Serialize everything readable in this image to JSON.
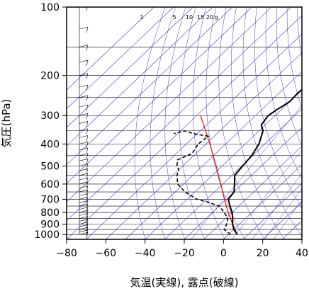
{
  "chart_data": {
    "type": "line",
    "subtype": "skew-T log-P thermodynamic diagram",
    "xlabel": "気温(実線), 露点(破線)",
    "ylabel": "気圧(hPa)",
    "xlim": [
      -80,
      40
    ],
    "ylim_pressure_hPa": [
      1050,
      100
    ],
    "y_scale": "log",
    "x_ticks": [
      "−80",
      "−60",
      "−40",
      "−20",
      "0",
      "20",
      "40"
    ],
    "x_tick_values": [
      -80,
      -60,
      -40,
      -20,
      0,
      20,
      40
    ],
    "y_ticks": [
      "100",
      "200",
      "300",
      "400",
      "500",
      "600",
      "700",
      "800",
      "900",
      "1000"
    ],
    "y_tick_values": [
      100,
      200,
      300,
      400,
      500,
      600,
      700,
      800,
      900,
      1000
    ],
    "mixing_ratio_labels": [
      "1",
      "5",
      "10",
      "15",
      "20",
      "g"
    ],
    "colors": {
      "temperature": "#000000",
      "dewpoint": "#000000",
      "parcel": "#ff0000",
      "isotherm": "#3a3ad0",
      "isobar": "#000000",
      "wind_barb": "#000000"
    },
    "series": [
      {
        "style": "solid",
        "points": [
          {
            "p": 1000,
            "t": 4.5
          },
          {
            "p": 950,
            "t": 0
          },
          {
            "p": 900,
            "t": -3.5
          },
          {
            "p": 850,
            "t": -6.5
          },
          {
            "p": 800,
            "t": -10
          },
          {
            "p": 750,
            "t": -14.5
          },
          {
            "p": 700,
            "t": -19
          },
          {
            "p": 650,
            "t": -20
          },
          {
            "p": 600,
            "t": -24
          },
          {
            "p": 550,
            "t": -28.5
          },
          {
            "p": 500,
            "t": -29.5
          },
          {
            "p": 450,
            "t": -30.5
          },
          {
            "p": 400,
            "t": -33
          },
          {
            "p": 350,
            "t": -38
          },
          {
            "p": 330,
            "t": -42
          },
          {
            "p": 300,
            "t": -43.5
          },
          {
            "p": 280,
            "t": -42
          },
          {
            "p": 260,
            "t": -40
          },
          {
            "p": 240,
            "t": -40.5
          },
          {
            "p": 220,
            "t": -40
          },
          {
            "p": 200,
            "t": -42.5
          },
          {
            "p": 180,
            "t": -45
          },
          {
            "p": 160,
            "t": -46
          },
          {
            "p": 140,
            "t": -48
          },
          {
            "p": 120,
            "t": -51
          },
          {
            "p": 110,
            "t": -53
          },
          {
            "p": 100,
            "t": -54
          }
        ]
      },
      {
        "style": "dashed",
        "points": [
          {
            "p": 1000,
            "t": 1
          },
          {
            "p": 950,
            "t": -5
          },
          {
            "p": 900,
            "t": -6.5
          },
          {
            "p": 850,
            "t": -9
          },
          {
            "p": 800,
            "t": -14
          },
          {
            "p": 750,
            "t": -20
          },
          {
            "p": 720,
            "t": -28
          },
          {
            "p": 700,
            "t": -35
          },
          {
            "p": 650,
            "t": -45
          },
          {
            "p": 600,
            "t": -53
          },
          {
            "p": 550,
            "t": -58
          },
          {
            "p": 520,
            "t": -60
          },
          {
            "p": 500,
            "t": -63
          },
          {
            "p": 470,
            "t": -66
          },
          {
            "p": 440,
            "t": -62
          },
          {
            "p": 400,
            "t": -64
          },
          {
            "p": 370,
            "t": -63
          },
          {
            "p": 360,
            "t": -72
          },
          {
            "p": 350,
            "t": -78
          },
          {
            "p": 360,
            "t": -82
          }
        ]
      },
      {
        "style": "solid-red",
        "points": [
          {
            "p": 1000,
            "t": 4.5
          },
          {
            "p": 900,
            "t": -3.5
          },
          {
            "p": 800,
            "t": -12
          },
          {
            "p": 700,
            "t": -21
          },
          {
            "p": 600,
            "t": -31
          },
          {
            "p": 500,
            "t": -43
          },
          {
            "p": 400,
            "t": -58
          },
          {
            "p": 300,
            "t": -78
          }
        ]
      }
    ]
  }
}
